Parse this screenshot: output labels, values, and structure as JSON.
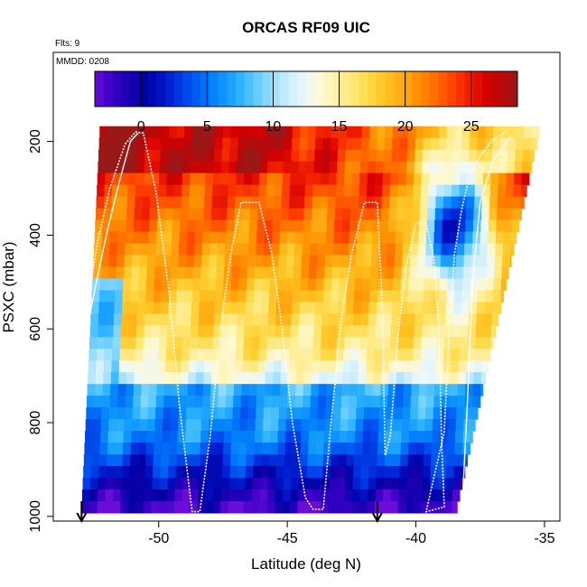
{
  "chart_data": {
    "type": "heatmap",
    "title": "ORCAS RF09 UIC",
    "flights_text": "Flts: 9",
    "date_text": "MMDD: 0208",
    "xlabel": "Latitude (deg N)",
    "ylabel": "PSXC (mbar)",
    "xlim": [
      -54.1,
      -34.4
    ],
    "ylim": [
      1010,
      10
    ],
    "y_reversed": true,
    "grid": false,
    "x_ticks": [
      -50,
      -45,
      -40,
      -35
    ],
    "x_tick_labels": [
      "-50",
      "-45",
      "-40",
      "-35"
    ],
    "y_ticks": [
      200,
      400,
      600,
      800,
      1000
    ],
    "y_tick_labels": [
      "200",
      "400",
      "600",
      "800",
      "1000"
    ],
    "colorbar": {
      "placement": "top",
      "range": [
        -3.5,
        28.5
      ],
      "ticks": [
        0,
        5,
        10,
        15,
        20,
        25
      ],
      "tick_labels": [
        "0",
        "5",
        "10",
        "15",
        "20",
        "25"
      ],
      "colors": [
        "#6a0dd8",
        "#3a00c8",
        "#1e00b4",
        "#0000a0",
        "#0010c0",
        "#0030e0",
        "#0055f0",
        "#0078fa",
        "#1098ff",
        "#30b4ff",
        "#66ccff",
        "#9fe0ff",
        "#cfeefe",
        "#eef8f8",
        "#fff8d0",
        "#fff0a0",
        "#ffe570",
        "#ffd640",
        "#ffc020",
        "#ffa810",
        "#ff8c00",
        "#ff6a00",
        "#ff4400",
        "#f02000",
        "#d80000",
        "#b80808",
        "#9a1818"
      ]
    },
    "pressure_levels": [
      180,
      205,
      230,
      255,
      280,
      305,
      330,
      355,
      380,
      405,
      430,
      455,
      480,
      505,
      530,
      555,
      580,
      605,
      630,
      655,
      680,
      705,
      730,
      755,
      780,
      805,
      830,
      855,
      880,
      905,
      930,
      955,
      980
    ],
    "latitude_edges": {
      "top_left": -52.3,
      "top_right": -35.2,
      "bottom_left": -53.0,
      "bottom_right": -38.4,
      "step": 0.3
    },
    "field_values": {
      "upper_band_max": 27,
      "central_yellow": 19,
      "low_level_blue": 6,
      "northern_minimum": 2
    },
    "flight_track": {
      "color": "#ffffff",
      "points": [
        [
          -53.0,
          660
        ],
        [
          -52.8,
          560
        ],
        [
          -52.4,
          420
        ],
        [
          -51.9,
          300
        ],
        [
          -51.3,
          205
        ],
        [
          -50.9,
          180
        ],
        [
          -50.6,
          182
        ],
        [
          -50.1,
          310
        ],
        [
          -49.6,
          520
        ],
        [
          -49.2,
          760
        ],
        [
          -48.8,
          945
        ],
        [
          -48.7,
          990
        ],
        [
          -48.4,
          990
        ],
        [
          -48.0,
          830
        ],
        [
          -47.6,
          600
        ],
        [
          -47.2,
          440
        ],
        [
          -46.8,
          330
        ],
        [
          -46.1,
          330
        ],
        [
          -45.6,
          440
        ],
        [
          -45.2,
          600
        ],
        [
          -44.8,
          800
        ],
        [
          -44.3,
          960
        ],
        [
          -44.0,
          985
        ],
        [
          -43.6,
          985
        ],
        [
          -43.3,
          800
        ],
        [
          -42.9,
          580
        ],
        [
          -42.5,
          440
        ],
        [
          -42.0,
          330
        ],
        [
          -41.5,
          330
        ],
        [
          -41.3,
          560
        ],
        [
          -41.2,
          870
        ],
        [
          -41.0,
          830
        ],
        [
          -40.7,
          620
        ],
        [
          -40.4,
          470
        ],
        [
          -40.0,
          375
        ],
        [
          -39.6,
          375
        ],
        [
          -39.3,
          450
        ],
        [
          -39.1,
          600
        ],
        [
          -39.0,
          840
        ],
        [
          -38.9,
          980
        ],
        [
          -39.6,
          990
        ],
        [
          -38.9,
          820
        ],
        [
          -38.7,
          600
        ],
        [
          -38.5,
          440
        ],
        [
          -38.2,
          340
        ],
        [
          -37.9,
          270
        ],
        [
          -37.5,
          230
        ],
        [
          -37.0,
          195
        ],
        [
          -36.5,
          180
        ]
      ],
      "return_points": [
        [
          -53.0,
          660
        ],
        [
          -52.5,
          520
        ],
        [
          -52.0,
          390
        ],
        [
          -51.5,
          280
        ],
        [
          -51.1,
          200
        ],
        [
          -50.8,
          182
        ]
      ],
      "mirror_points": [
        [
          -38.2,
          980
        ],
        [
          -38.0,
          760
        ],
        [
          -37.8,
          500
        ],
        [
          -37.5,
          330
        ],
        [
          -37.0,
          240
        ],
        [
          -36.3,
          190
        ]
      ]
    },
    "markers": [
      {
        "label": "",
        "lat": -53.0,
        "arrow": "down"
      },
      {
        "label": "",
        "lat": -41.5,
        "arrow": "down"
      }
    ]
  }
}
